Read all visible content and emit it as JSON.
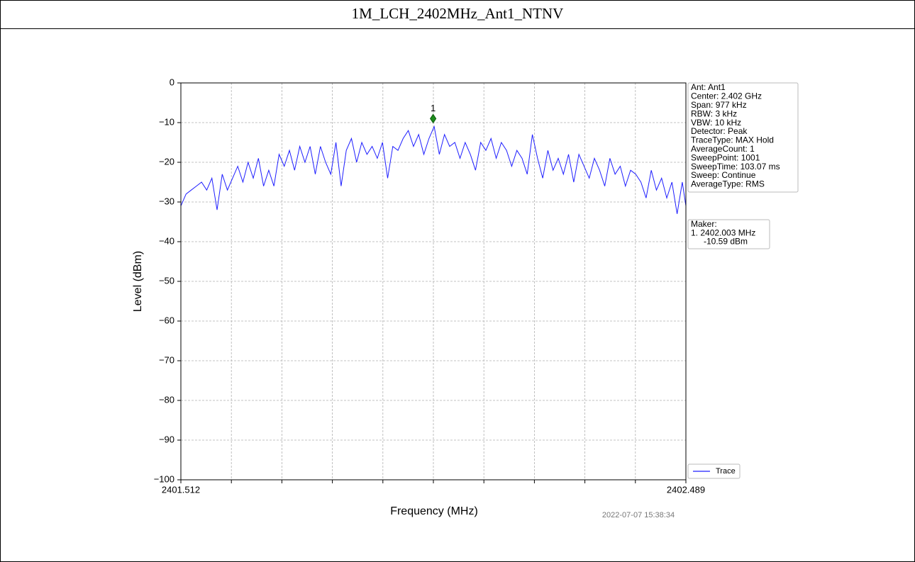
{
  "title": "1M_LCH_2402MHz_Ant1_NTNV",
  "chart_data": {
    "type": "line",
    "xlabel": "Frequency (MHz)",
    "ylabel": "Level (dBm)",
    "xlim": [
      2401.512,
      2402.489
    ],
    "ylim": [
      -100,
      0
    ],
    "xticks": [
      2401.512,
      {
        "value": 2401.6097,
        "label": null
      },
      {
        "value": 2401.7074,
        "label": null
      },
      {
        "value": 2401.8051,
        "label": null
      },
      {
        "value": 2401.9028,
        "label": null
      },
      {
        "value": 2402.0005,
        "label": null
      },
      {
        "value": 2402.0982,
        "label": null
      },
      {
        "value": 2402.1959,
        "label": null
      },
      {
        "value": 2402.2936,
        "label": null
      },
      {
        "value": 2402.3913,
        "label": null
      },
      2402.489
    ],
    "yticks": [
      0,
      {
        "value": -10,
        "label": "−10"
      },
      {
        "value": -20,
        "label": "−20"
      },
      {
        "value": -30,
        "label": "−30"
      },
      {
        "value": -40,
        "label": "−40"
      },
      {
        "value": -50,
        "label": "−50"
      },
      {
        "value": -60,
        "label": "−60"
      },
      {
        "value": -70,
        "label": "−70"
      },
      {
        "value": -80,
        "label": "−80"
      },
      {
        "value": -90,
        "label": "−90"
      },
      {
        "value": -100,
        "label": "−100"
      }
    ],
    "grid": true,
    "x": [
      2401.512,
      2401.522,
      2401.532,
      2401.542,
      2401.552,
      2401.562,
      2401.572,
      2401.582,
      2401.592,
      2401.602,
      2401.612,
      2401.622,
      2401.632,
      2401.642,
      2401.652,
      2401.662,
      2401.672,
      2401.682,
      2401.692,
      2401.702,
      2401.712,
      2401.722,
      2401.732,
      2401.742,
      2401.752,
      2401.762,
      2401.772,
      2401.782,
      2401.792,
      2401.802,
      2401.812,
      2401.822,
      2401.832,
      2401.842,
      2401.852,
      2401.862,
      2401.872,
      2401.882,
      2401.892,
      2401.902,
      2401.912,
      2401.922,
      2401.932,
      2401.942,
      2401.952,
      2401.962,
      2401.972,
      2401.982,
      2401.992,
      2402.002,
      2402.012,
      2402.022,
      2402.032,
      2402.042,
      2402.052,
      2402.062,
      2402.072,
      2402.082,
      2402.092,
      2402.102,
      2402.112,
      2402.122,
      2402.132,
      2402.142,
      2402.152,
      2402.162,
      2402.172,
      2402.182,
      2402.192,
      2402.202,
      2402.212,
      2402.222,
      2402.232,
      2402.242,
      2402.252,
      2402.262,
      2402.272,
      2402.282,
      2402.292,
      2402.302,
      2402.312,
      2402.322,
      2402.332,
      2402.342,
      2402.352,
      2402.362,
      2402.372,
      2402.382,
      2402.392,
      2402.402,
      2402.412,
      2402.422,
      2402.432,
      2402.442,
      2402.452,
      2402.462,
      2402.472,
      2402.482,
      2402.489
    ],
    "series": [
      {
        "name": "Trace",
        "color": "#1f1fff",
        "values": [
          -31,
          -28,
          -27,
          -26,
          -25,
          -27,
          -24,
          -32,
          -23,
          -27,
          -24,
          -21,
          -25,
          -20,
          -24,
          -19,
          -26,
          -22,
          -26,
          -18,
          -21,
          -17,
          -22,
          -16,
          -20,
          -16,
          -23,
          -16,
          -20,
          -23,
          -15,
          -26,
          -17,
          -14,
          -20,
          -15,
          -18,
          -16,
          -19,
          -15,
          -24,
          -16,
          -17,
          -14,
          -12,
          -16,
          -13,
          -18,
          -14,
          -11,
          -18,
          -13,
          -16,
          -15,
          -19,
          -15,
          -18,
          -22,
          -15,
          -17,
          -14,
          -19,
          -15,
          -17,
          -21,
          -17,
          -19,
          -23,
          -13,
          -19,
          -24,
          -17,
          -22,
          -19,
          -23,
          -18,
          -25,
          -18,
          -21,
          -24,
          -19,
          -22,
          -26,
          -19,
          -23,
          -21,
          -26,
          -22,
          -23,
          -25,
          -29,
          -22,
          -27,
          -24,
          -29,
          -25,
          -33,
          -25,
          -31
        ]
      }
    ],
    "marker": {
      "label": "1",
      "x": 2402.0,
      "y": -9,
      "color": "#1e8c1e"
    },
    "info_lines": [
      "Ant: Ant1",
      "Center: 2.402 GHz",
      "Span: 977 kHz",
      "RBW: 3 kHz",
      "VBW: 10 kHz",
      "Detector: Peak",
      "TraceType: MAX Hold",
      "AverageCount: 1",
      "SweepPoint: 1001",
      "SweepTime: 103.07 ms",
      "Sweep: Continue",
      "AverageType: RMS"
    ],
    "marker_lines": [
      "Maker:",
      "1. 2402.003 MHz",
      "-10.59 dBm"
    ],
    "timestamp": "2022-07-07 15:38:34",
    "legend": "lower right"
  }
}
